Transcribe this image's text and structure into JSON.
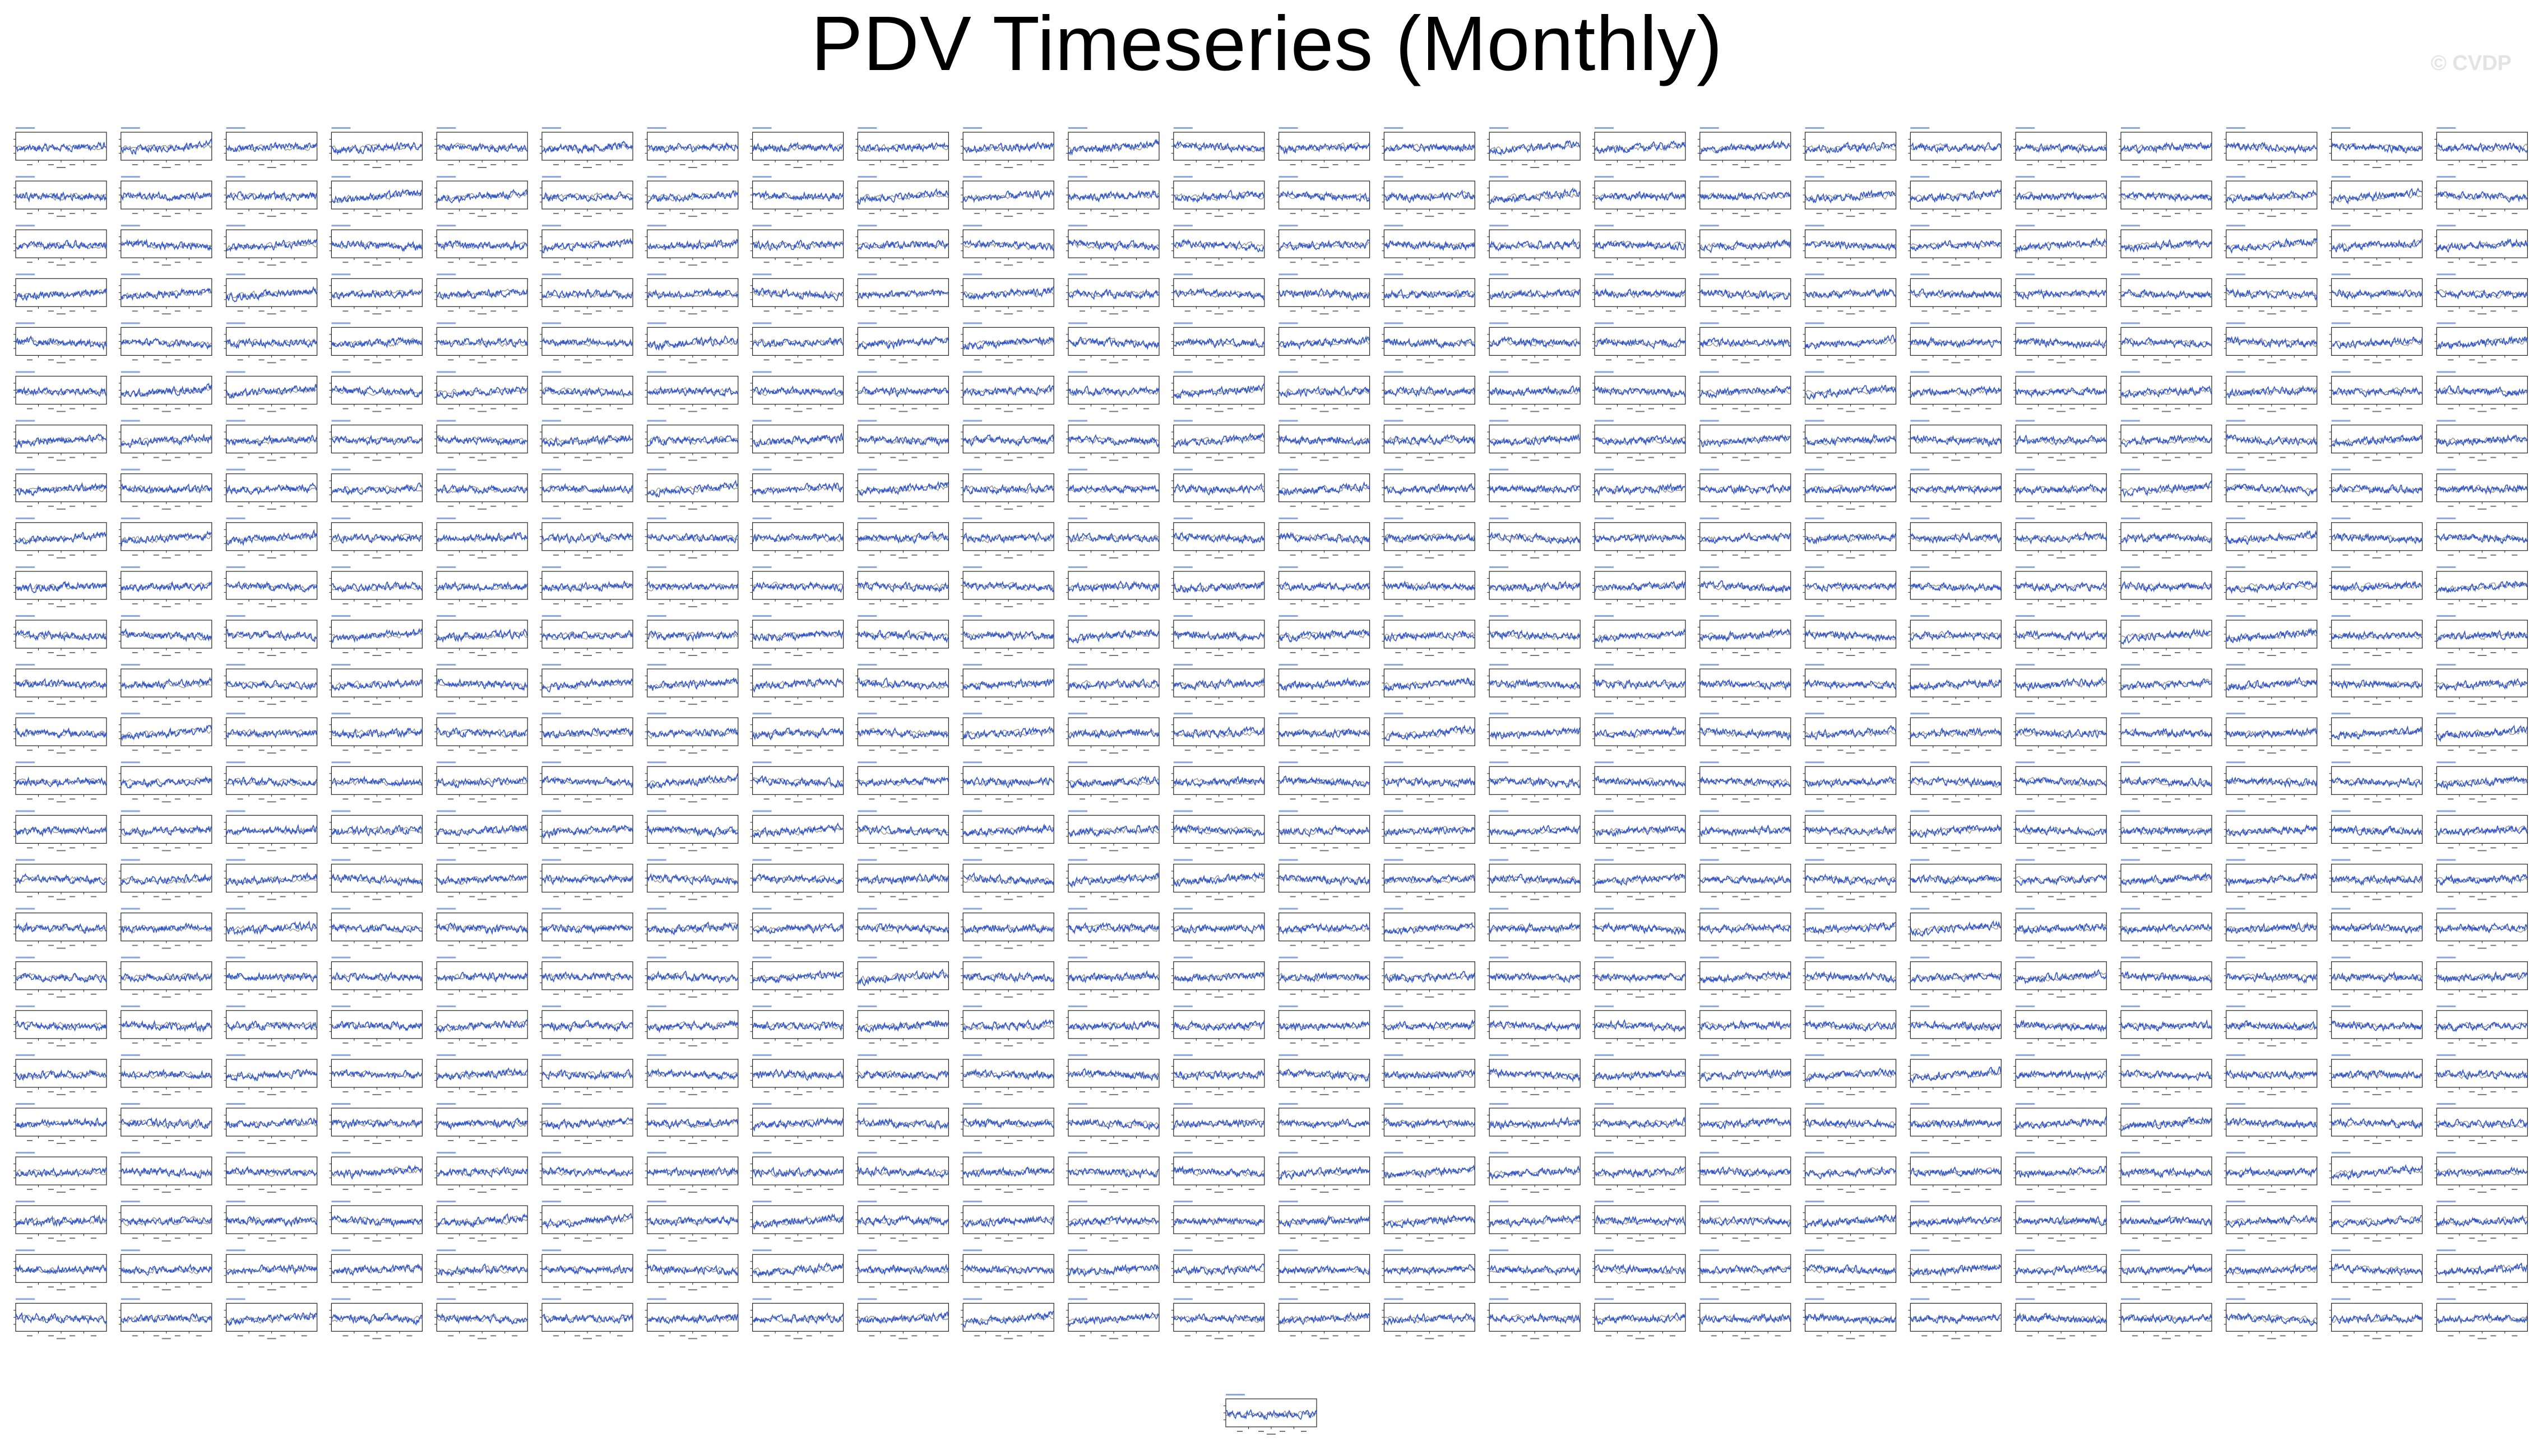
{
  "title": "PDV Timeseries (Monthly)",
  "watermark": "© CVDP",
  "chart_data": {
    "type": "line",
    "title": "PDV Timeseries (Monthly)",
    "layout": {
      "rows": 25,
      "columns": 24,
      "extra_bottom_panels": 1
    },
    "series_style": [
      {
        "role": "model",
        "color": "#3358cc"
      },
      {
        "role": "reference",
        "color": "#8a8a8a"
      }
    ],
    "panel_values_legible": false,
    "grid": false,
    "legend": "none"
  },
  "colors": {
    "model_line": "#3358cc",
    "reference_line": "#8a8a8a",
    "panel_frame": "#222222",
    "watermark": "#e3e3e3"
  }
}
